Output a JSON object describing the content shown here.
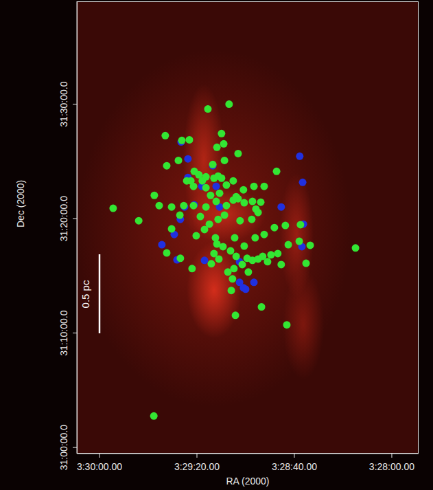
{
  "chart_data": {
    "type": "scatter",
    "x_label": "RA (2000)",
    "y_label": "Dec (2000)",
    "annotation": "0.5 pc",
    "marker": "circle",
    "grid": false,
    "xlim": [
      12609.3,
      12469.0
    ],
    "ylim": [
      111568,
      113939
    ],
    "xticks": [
      {
        "value": 12600,
        "label": "3:30:00.00"
      },
      {
        "value": 12560,
        "label": "3:29:20.00"
      },
      {
        "value": 12520,
        "label": "3:28:40.00"
      },
      {
        "value": 12480,
        "label": "3:28:00.00"
      }
    ],
    "yticks": [
      {
        "value": 111600,
        "label": "31:00:00.0"
      },
      {
        "value": 112200,
        "label": "31:10:00.0"
      },
      {
        "value": 112800,
        "label": "31:20:00.0"
      },
      {
        "value": 113400,
        "label": "31:30:00.0"
      }
    ],
    "series": [
      {
        "color": "#2030e0",
        "x": [
          12566.5,
          12563.7,
          12553.5,
          12563.7,
          12552.1,
          12558.0,
          12550.7,
          12561.1,
          12566.8,
          12565.1,
          12517.8,
          12516.6,
          12525.4,
          12516.3,
          12516.9,
          12569.3,
          12574.4,
          12568.2,
          12556.9,
          12542.5,
          12542.5,
          12540.0,
          12536.6,
          12540.9
        ],
        "y": [
          113202,
          113113,
          113077,
          113016,
          112969,
          112969,
          112861,
          112872,
          112796,
          112861,
          113127,
          112990,
          112861,
          112771,
          112653,
          112717,
          112663,
          112584,
          112581,
          112574,
          112466,
          112430,
          112466,
          112437
        ]
      },
      {
        "color": "#33e633",
        "x": [
          12555.5,
          12546.8,
          12573.0,
          12566.2,
          12563.1,
          12549.9,
          12551.8,
          12549.0,
          12543.1,
          12572.4,
          12567.6,
          12561.1,
          12559.2,
          12556.3,
          12557.8,
          12553.0,
          12551.3,
          12549.9,
          12547.9,
          12545.1,
          12543.9,
          12540.9,
          12536.6,
          12532.4,
          12527.3,
          12543.1,
          12550.7,
          12554.4,
          12556.3,
          12561.4,
          12564.2,
          12577.5,
          12575.5,
          12570.4,
          12565.4,
          12561.4,
          12556.3,
          12552.1,
          12547.9,
          12545.1,
          12540.6,
          12537.2,
          12533.8,
          12594.4,
          12583.9,
          12558.6,
          12554.9,
          12551.3,
          12548.7,
          12542.3,
          12537.5,
          12534.9,
          12567.0,
          12570.4,
          12560.3,
          12556.9,
          12552.4,
          12544.5,
          12536.1,
          12532.4,
          12528.2,
          12523.7,
          12517.5,
          12513.5,
          12518.0,
          12522.5,
          12526.8,
          12529.6,
          12533.0,
          12534.9,
          12537.2,
          12539.4,
          12541.4,
          12543.9,
          12546.2,
          12549.3,
          12551.8,
          12553.0,
          12554.1,
          12551.0,
          12562.0,
          12566.8,
          12572.4,
          12547.3,
          12545.4,
          12538.9,
          12531.0,
          12525.4,
          12515.2,
          12494.9,
          12545.9,
          12533.5,
          12544.2,
          12523.1,
          12577.7,
          12548.7,
          12553.5,
          12562.5,
          12535.8,
          12540.6,
          12544.8
        ],
        "y": [
          113375,
          113400,
          113235,
          113210,
          113213,
          113246,
          113174,
          113192,
          113141,
          113077,
          113105,
          113048,
          113030,
          113019,
          112998,
          113012,
          113023,
          113012,
          112976,
          112998,
          112915,
          112951,
          112969,
          112969,
          113048,
          112904,
          112933,
          112922,
          112962,
          112969,
          112998,
          112922,
          112868,
          112861,
          112868,
          112868,
          112861,
          112890,
          112868,
          112897,
          112883,
          112890,
          112886,
          112854,
          112789,
          112811,
          112771,
          112796,
          112818,
          112789,
          112796,
          112832,
          112818,
          112746,
          112710,
          112743,
          112699,
          112699,
          112699,
          112717,
          112753,
          112764,
          112768,
          112660,
          112681,
          112663,
          112617,
          112610,
          112602,
          112588,
          112581,
          112592,
          112559,
          112602,
          112631,
          112653,
          112667,
          112617,
          112563,
          112588,
          112538,
          112592,
          112620,
          112520,
          112484,
          112520,
          112574,
          112559,
          112566,
          112646,
          112423,
          112337,
          112293,
          112243,
          111765,
          113105,
          113084,
          112998,
          112850,
          112656,
          112538
        ]
      }
    ]
  }
}
